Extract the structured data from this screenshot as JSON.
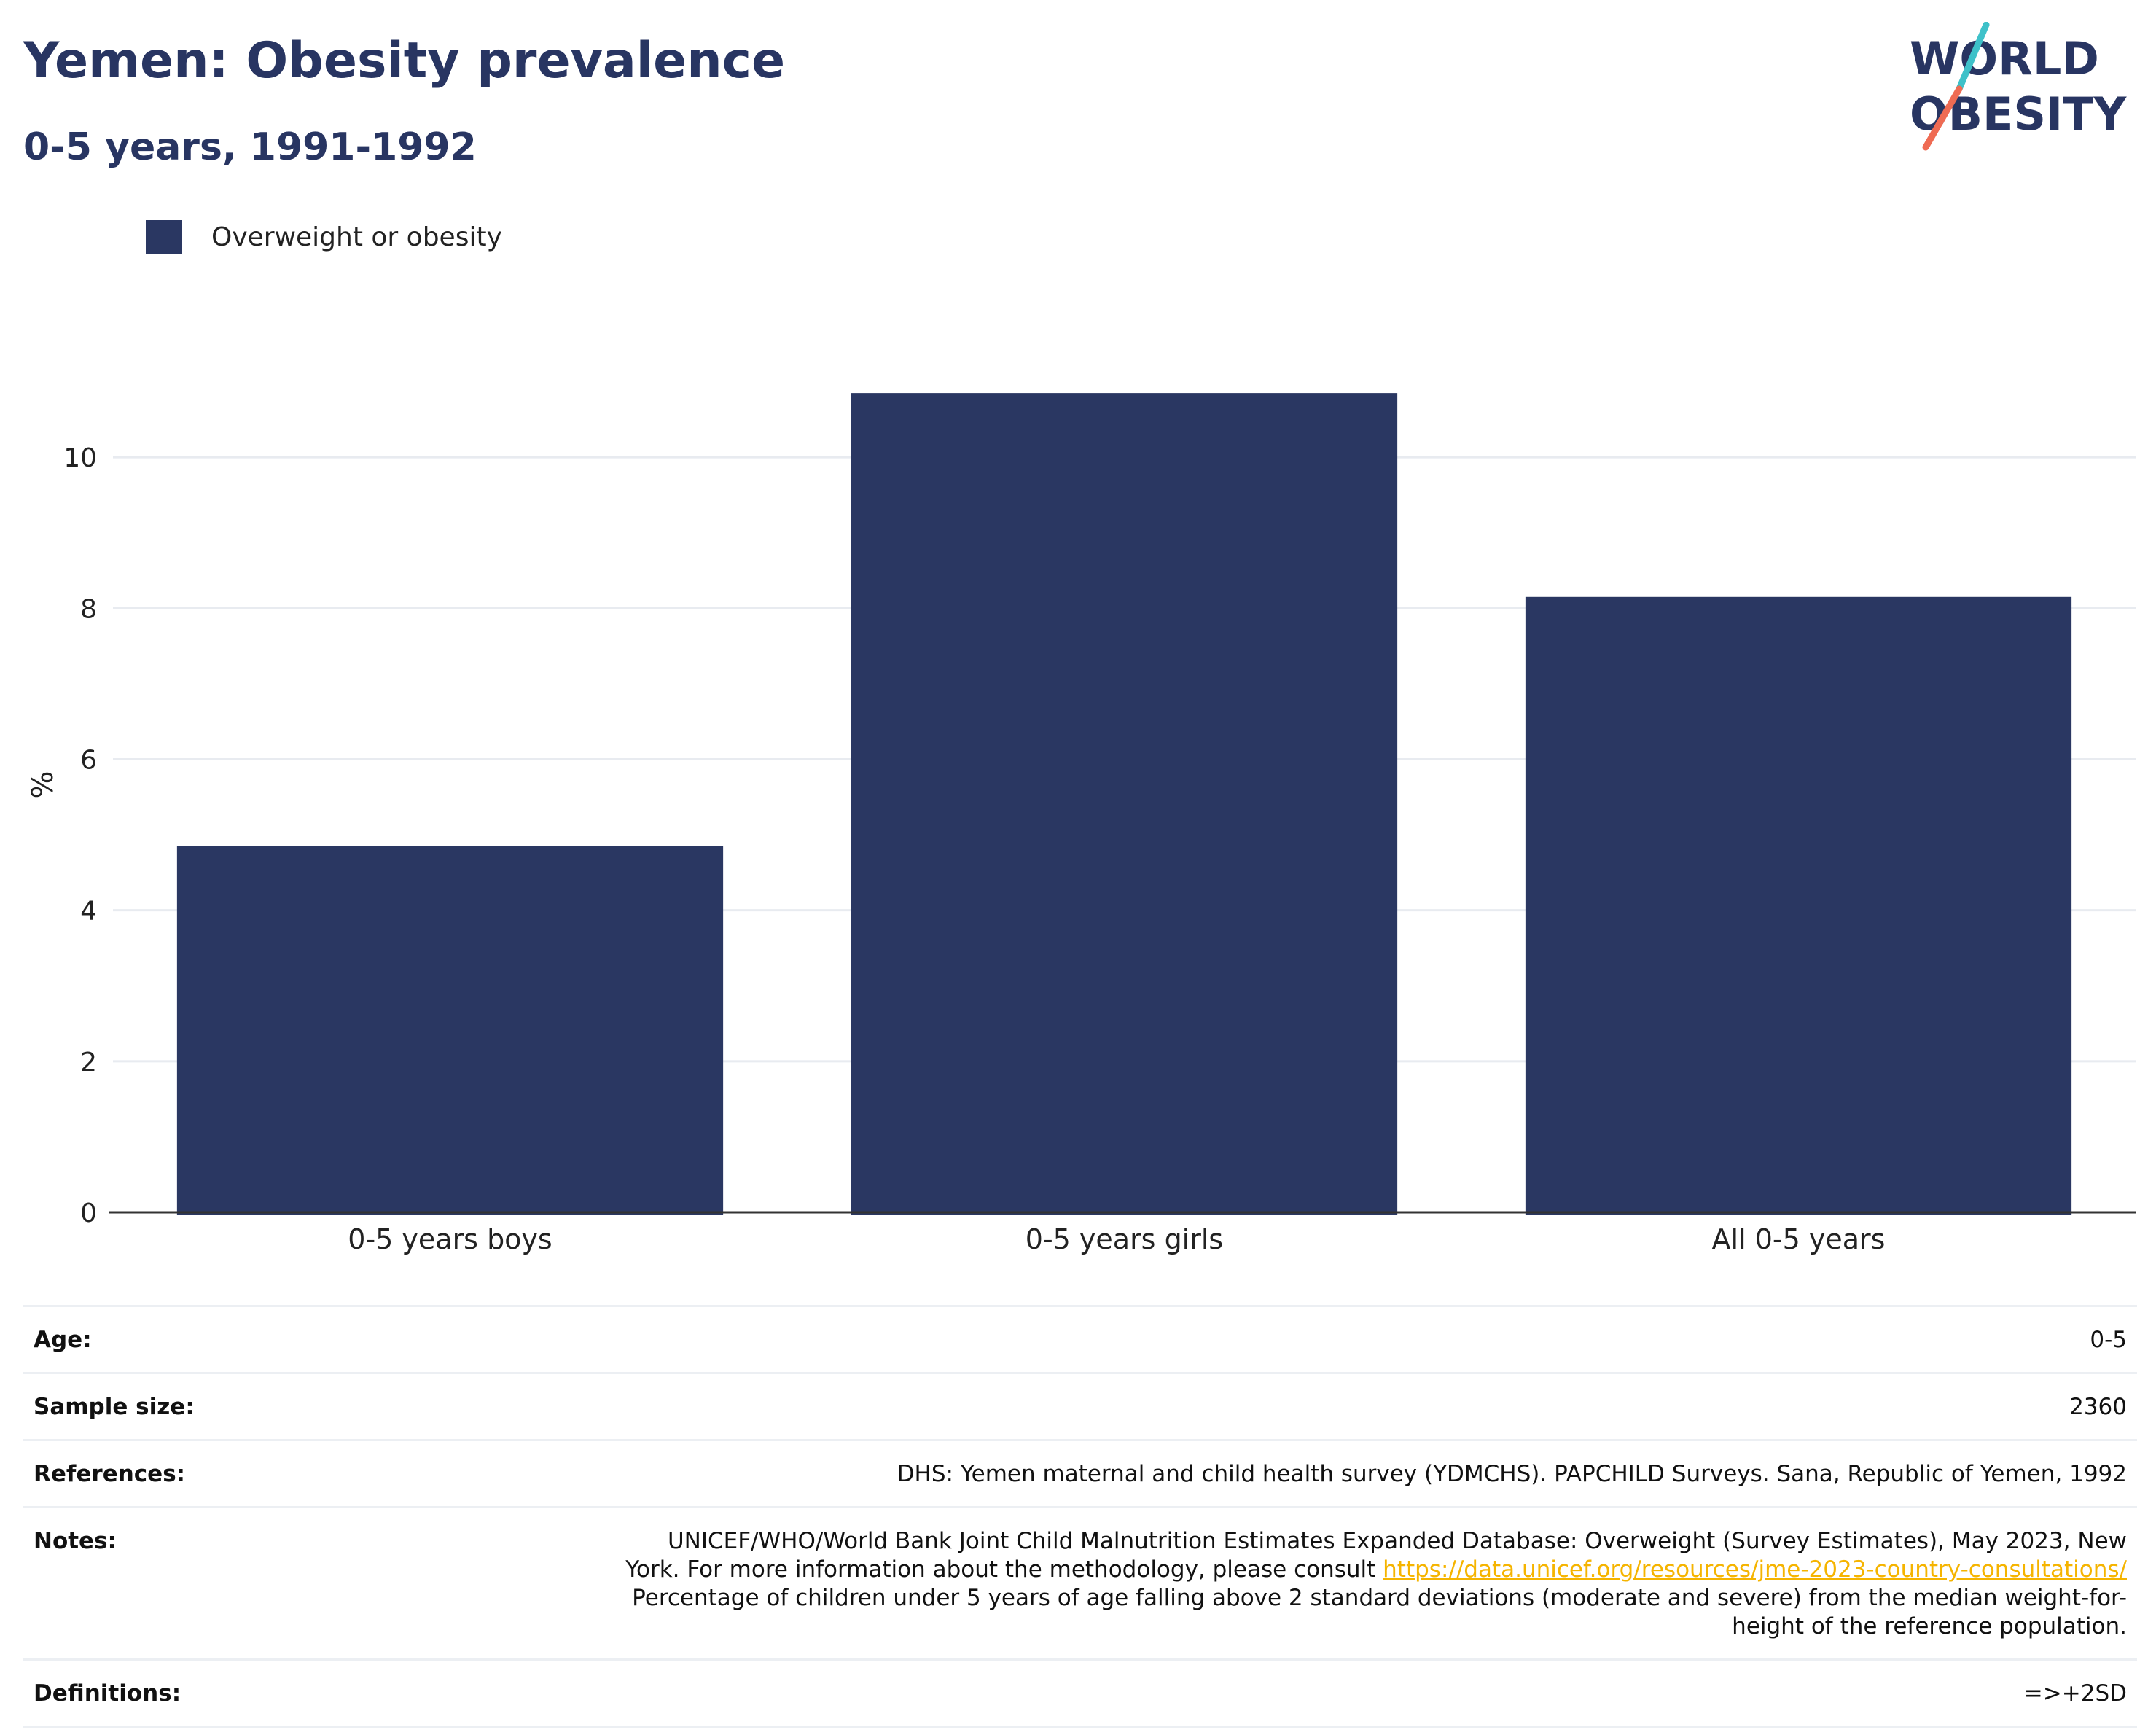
{
  "header": {
    "title": "Yemen: Obesity prevalence",
    "subtitle": "0-5 years, 1991-1992"
  },
  "logo": {
    "line1": "WORLD",
    "line2": "OBESITY",
    "colors": {
      "text": "#283562",
      "slash_top": "#3ec1c9",
      "slash_bottom": "#ef6b53"
    }
  },
  "colors": {
    "bar": "#2a3762",
    "grid": "#e8ebf0",
    "axis": "#333333",
    "accent_text": "#283562",
    "link": "#f5b400"
  },
  "chart_data": {
    "type": "bar",
    "categories": [
      "0-5 years boys",
      "0-5 years girls",
      "All 0-5 years"
    ],
    "series": [
      {
        "name": "Overweight or obesity",
        "values": [
          4.85,
          10.85,
          8.15
        ],
        "color": "#2a3762"
      }
    ],
    "title": "Yemen: Obesity prevalence",
    "subtitle": "0-5 years, 1991-1992",
    "xlabel": "",
    "ylabel": "%",
    "ylim": [
      0,
      12
    ],
    "yticks": [
      0,
      2,
      4,
      6,
      8,
      10
    ],
    "grid": true,
    "legend": "top-left"
  },
  "info": {
    "age_label": "Age:",
    "age_value": "0-5",
    "sample_label": "Sample size:",
    "sample_value": "2360",
    "references_label": "References:",
    "references_value": "DHS: Yemen maternal and child health survey (YDMCHS). PAPCHILD Surveys. Sana, Republic of Yemen, 1992",
    "notes_label": "Notes:",
    "notes_text_1": "UNICEF/WHO/World Bank Joint Child Malnutrition Estimates Expanded Database: Overweight (Survey Estimates), May 2023, New York. For more information about the methodology, please consult",
    "notes_link": "https://data.unicef.org/resources/jme-2023-country-consultations/",
    "notes_text_2": "Percentage of children under 5 years of age falling above 2 standard deviations (moderate and severe) from the median weight-for-height of the reference population.",
    "definitions_label": "Definitions:",
    "definitions_value": "=>+2SD"
  }
}
